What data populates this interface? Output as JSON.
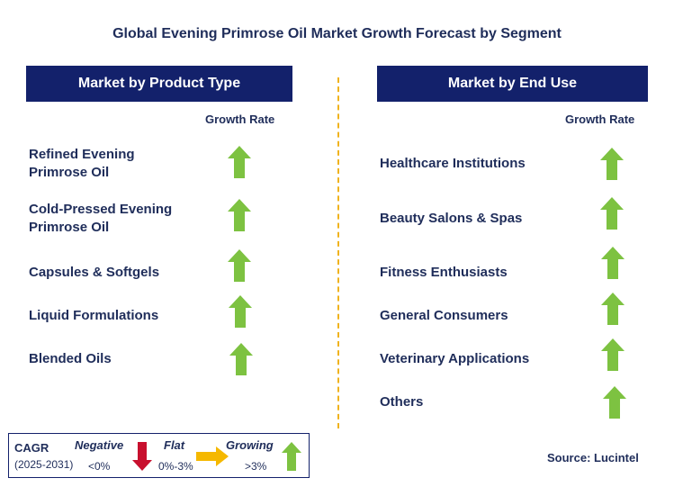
{
  "title": "Global Evening Primrose Oil Market Growth Forecast by Segment",
  "left": {
    "header": "Market by Product Type",
    "growth_label": "Growth Rate",
    "items": [
      {
        "line1": "Refined Evening",
        "line2": "Primrose Oil",
        "trend": "growing"
      },
      {
        "line1": "Cold-Pressed Evening",
        "line2": "Primrose Oil",
        "trend": "growing"
      },
      {
        "line1": "Capsules & Softgels",
        "line2": "",
        "trend": "growing"
      },
      {
        "line1": "Liquid Formulations",
        "line2": "",
        "trend": "growing"
      },
      {
        "line1": "Blended Oils",
        "line2": "",
        "trend": "growing"
      }
    ]
  },
  "right": {
    "header": "Market by End Use",
    "growth_label": "Growth Rate",
    "items": [
      {
        "line1": "Healthcare Institutions",
        "trend": "growing"
      },
      {
        "line1": "Beauty Salons & Spas",
        "trend": "growing"
      },
      {
        "line1": "Fitness Enthusiasts",
        "trend": "growing"
      },
      {
        "line1": "General Consumers",
        "trend": "growing"
      },
      {
        "line1": "Veterinary Applications",
        "trend": "growing"
      },
      {
        "line1": "Others",
        "trend": "growing"
      }
    ]
  },
  "legend": {
    "cagr": "CAGR",
    "period": "(2025-2031)",
    "negative_label": "Negative",
    "negative_range": "<0%",
    "flat_label": "Flat",
    "flat_range": "0%-3%",
    "growing_label": "Growing",
    "growing_range": ">3%"
  },
  "source": "Source: Lucintel",
  "colors": {
    "header_bg": "#13216b",
    "text": "#1f2d5a",
    "growing": "#7dc241",
    "negative": "#c8102e",
    "flat": "#f5b800",
    "divider": "#f0b31e"
  }
}
